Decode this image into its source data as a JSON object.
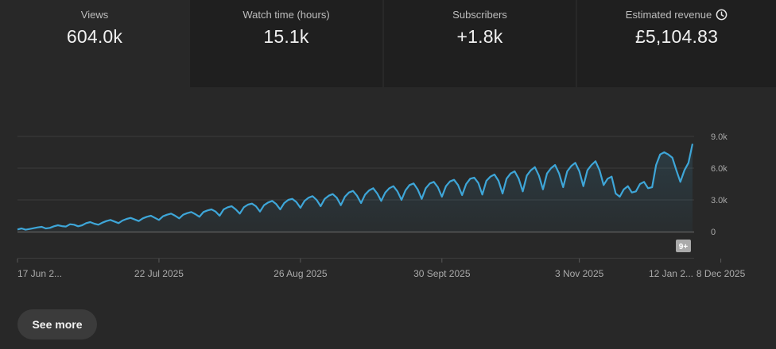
{
  "metrics": [
    {
      "label": "Views",
      "value": "604.0k"
    },
    {
      "label": "Watch time (hours)",
      "value": "15.1k"
    },
    {
      "label": "Subscribers",
      "value": "+1.8k"
    },
    {
      "label": "Estimated revenue",
      "value": "£5,104.83",
      "icon": "clock-icon"
    }
  ],
  "see_more_label": "See more",
  "event_badge": "9+",
  "colors": {
    "line": "#3ea6d8",
    "background": "#282828",
    "tab": "#1f1f1f"
  },
  "chart_data": {
    "type": "area",
    "series": [
      {
        "values": [
          200,
          300,
          180,
          250,
          320,
          400,
          450,
          300,
          350,
          500,
          600,
          520,
          480,
          700,
          650,
          500,
          600,
          800,
          900,
          750,
          650,
          850,
          1000,
          1100,
          950,
          800,
          1050,
          1200,
          1300,
          1150,
          1000,
          1250,
          1400,
          1500,
          1300,
          1100,
          1450,
          1600,
          1700,
          1500,
          1250,
          1600,
          1750,
          1850,
          1650,
          1400,
          1850,
          2000,
          2100,
          1900,
          1500,
          2100,
          2300,
          2400,
          2100,
          1700,
          2300,
          2550,
          2650,
          2400,
          1900,
          2500,
          2750,
          2900,
          2600,
          2100,
          2700,
          3000,
          3100,
          2800,
          2250,
          2900,
          3200,
          3350,
          3000,
          2400,
          3100,
          3400,
          3550,
          3200,
          2500,
          3300,
          3700,
          3850,
          3400,
          2700,
          3500,
          3900,
          4100,
          3600,
          2900,
          3700,
          4100,
          4300,
          3800,
          3000,
          3900,
          4400,
          4550,
          4000,
          3100,
          4100,
          4550,
          4700,
          4200,
          3300,
          4300,
          4750,
          4900,
          4400,
          3450,
          4500,
          5000,
          5100,
          4600,
          3500,
          4800,
          5200,
          5400,
          4800,
          3600,
          5000,
          5500,
          5700,
          5000,
          3800,
          5300,
          5800,
          6100,
          5300,
          4000,
          5500,
          6000,
          6300,
          5500,
          4200,
          5700,
          6200,
          6500,
          5700,
          4300,
          5800,
          6300,
          6650,
          5800,
          4400,
          5000,
          5200,
          3600,
          3300,
          4000,
          4300,
          3700,
          3800,
          4500,
          4700,
          4100,
          4200,
          6300,
          7300,
          7500,
          7300,
          7000,
          5800,
          4700,
          5800,
          6500,
          8300
        ]
      }
    ],
    "x_ticks": [
      "17 Jun 2...",
      "22 Jul 2025",
      "26 Aug 2025",
      "30 Sept 2025",
      "3 Nov 2025",
      "8 Dec 2025",
      "12 Jan 2..."
    ],
    "x_tick_index": [
      0,
      35,
      70,
      105,
      139,
      174,
      209
    ],
    "y_ticks": [
      "9.0k",
      "6.0k",
      "3.0k",
      "0"
    ],
    "y_tick_values": [
      9000,
      6000,
      3000,
      0
    ],
    "ylim": [
      0,
      9000
    ],
    "grid": true
  }
}
